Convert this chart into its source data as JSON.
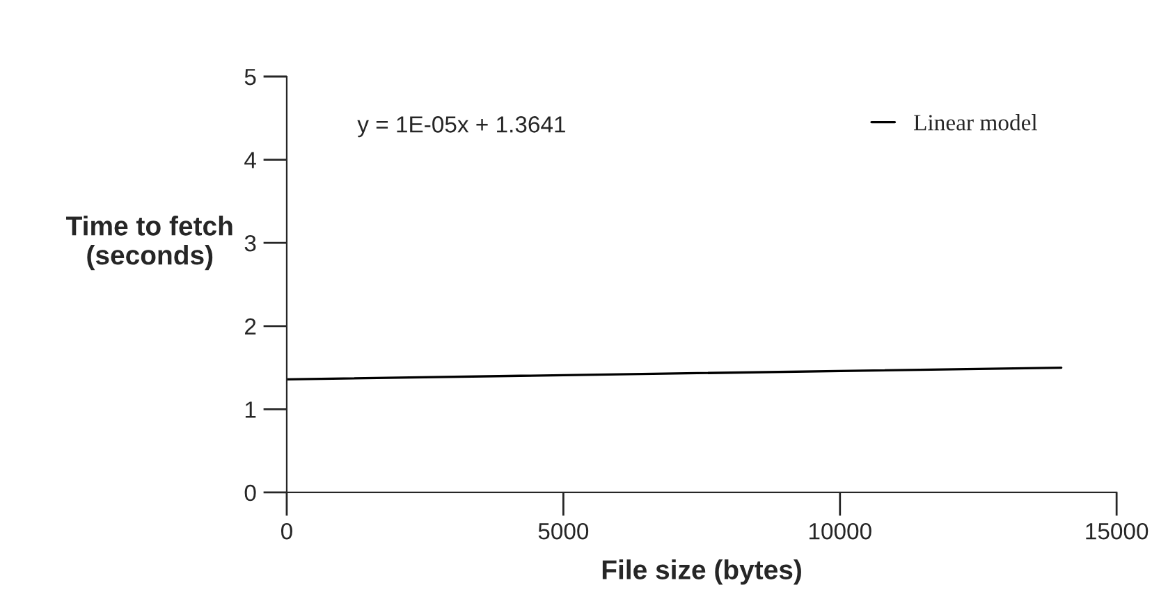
{
  "chart_data": {
    "type": "line",
    "xlabel": "File size (bytes)",
    "ylabel": "Time to fetch\n(seconds)",
    "annotations": [
      "y = 1E-05x + 1.3641"
    ],
    "series": [
      {
        "name": "Linear model",
        "color": "#000000",
        "x": [
          0,
          14000
        ],
        "values": [
          1.36,
          1.5
        ]
      }
    ],
    "xlim": [
      0,
      15000
    ],
    "xticks": [
      0,
      5000,
      10000,
      15000
    ],
    "ylim": [
      0,
      5
    ],
    "yticks": [
      0,
      1,
      2,
      3,
      4,
      5
    ],
    "grid": false,
    "legend": "top right",
    "marker": "none",
    "line_style": "solid"
  }
}
